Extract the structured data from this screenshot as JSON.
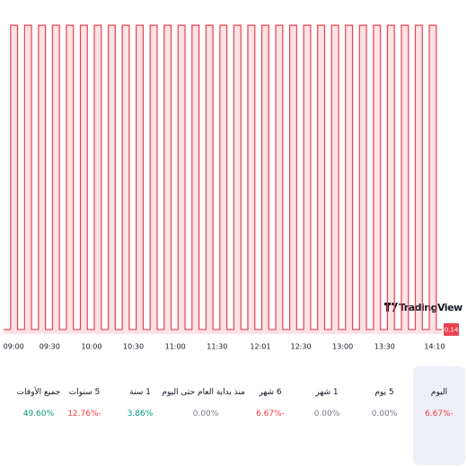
{
  "chart_data": {
    "type": "line",
    "color": "#e8414e",
    "fill": "rgba(242,54,69,0.14)",
    "watermark": "TradingView",
    "last_value": 0.14,
    "xlim": [
      537,
      851
    ],
    "ylim": [
      0.13985,
      0.15018
    ],
    "xticks": [
      {
        "value": 540,
        "label": "09:00"
      },
      {
        "value": 570,
        "label": "09:30"
      },
      {
        "value": 600,
        "label": "10:00"
      },
      {
        "value": 630,
        "label": "10:30"
      },
      {
        "value": 660,
        "label": "11:00"
      },
      {
        "value": 690,
        "label": "11:30"
      },
      {
        "value": 721,
        "label": "12:01"
      },
      {
        "value": 750,
        "label": "12:30"
      },
      {
        "value": 780,
        "label": "13:00"
      },
      {
        "value": 810,
        "label": "13:30"
      },
      {
        "value": 850,
        "label": "14:10"
      }
    ],
    "x": [
      537,
      542,
      542,
      547,
      547,
      552,
      552,
      557,
      557,
      562,
      562,
      567,
      567,
      572,
      572,
      577,
      577,
      582,
      582,
      587,
      587,
      592,
      592,
      597,
      597,
      602,
      602,
      607,
      607,
      612,
      612,
      617,
      617,
      622,
      622,
      627,
      627,
      632,
      632,
      637,
      637,
      642,
      642,
      647,
      647,
      652,
      652,
      657,
      657,
      662,
      662,
      667,
      667,
      672,
      672,
      677,
      677,
      682,
      682,
      687,
      687,
      692,
      692,
      697,
      697,
      702,
      702,
      707,
      707,
      712,
      712,
      717,
      717,
      722,
      722,
      727,
      727,
      732,
      732,
      737,
      737,
      742,
      742,
      747,
      747,
      752,
      752,
      757,
      757,
      762,
      762,
      767,
      767,
      772,
      772,
      777,
      777,
      782,
      782,
      787,
      787,
      792,
      792,
      797,
      797,
      802,
      802,
      807,
      807,
      812,
      812,
      817,
      817,
      822,
      822,
      827,
      827,
      832,
      832,
      837,
      837,
      842,
      842,
      847,
      847,
      851
    ],
    "values": [
      0.14,
      0.14,
      0.15,
      0.15,
      0.14,
      0.14,
      0.15,
      0.15,
      0.14,
      0.14,
      0.15,
      0.15,
      0.14,
      0.14,
      0.15,
      0.15,
      0.14,
      0.14,
      0.15,
      0.15,
      0.14,
      0.14,
      0.15,
      0.15,
      0.14,
      0.14,
      0.15,
      0.15,
      0.14,
      0.14,
      0.15,
      0.15,
      0.14,
      0.14,
      0.15,
      0.15,
      0.14,
      0.14,
      0.15,
      0.15,
      0.14,
      0.14,
      0.15,
      0.15,
      0.14,
      0.14,
      0.15,
      0.15,
      0.14,
      0.14,
      0.15,
      0.15,
      0.14,
      0.14,
      0.15,
      0.15,
      0.14,
      0.14,
      0.15,
      0.15,
      0.14,
      0.14,
      0.15,
      0.15,
      0.14,
      0.14,
      0.15,
      0.15,
      0.14,
      0.14,
      0.15,
      0.15,
      0.14,
      0.14,
      0.15,
      0.15,
      0.14,
      0.14,
      0.15,
      0.15,
      0.14,
      0.14,
      0.15,
      0.15,
      0.14,
      0.14,
      0.15,
      0.15,
      0.14,
      0.14,
      0.15,
      0.15,
      0.14,
      0.14,
      0.15,
      0.15,
      0.14,
      0.14,
      0.15,
      0.15,
      0.14,
      0.14,
      0.15,
      0.15,
      0.14,
      0.14,
      0.15,
      0.15,
      0.14,
      0.14,
      0.15,
      0.15,
      0.14,
      0.14,
      0.15,
      0.15,
      0.14,
      0.14,
      0.15,
      0.15,
      0.14,
      0.14,
      0.15,
      0.15,
      0.14,
      0.14
    ]
  },
  "performance": [
    {
      "label": "اليوم",
      "value": "6.67%-",
      "color": "#f23645",
      "selected": true
    },
    {
      "label": "5 يوم",
      "value": "0.00%",
      "color": "#787b86",
      "selected": false
    },
    {
      "label": "1 شهر",
      "value": "0.00%",
      "color": "#787b86",
      "selected": false
    },
    {
      "label": "6 شهر",
      "value": "6.67%-",
      "color": "#f23645",
      "selected": false
    },
    {
      "label": "منذ بداية العام حتى اليوم",
      "value": "0.00%",
      "color": "#787b86",
      "selected": false
    },
    {
      "label": "1 سنة",
      "value": "3.86%",
      "color": "#089981",
      "selected": false
    },
    {
      "label": "5 سنوات",
      "value": "12.76%-",
      "color": "#f23645",
      "selected": false
    },
    {
      "label": "جميع الأوقات",
      "value": "49.60%",
      "color": "#089981",
      "selected": false
    }
  ]
}
